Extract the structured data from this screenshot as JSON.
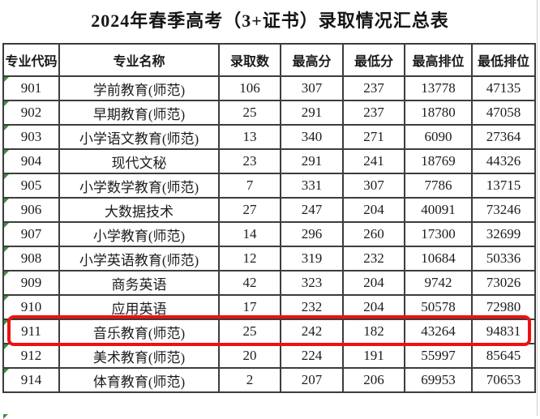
{
  "title": "2024年春季高考（3+证书）录取情况汇总表",
  "table": {
    "columns": [
      "专业代码",
      "专业名称",
      "录取数",
      "最高分",
      "最低分",
      "最高排位",
      "最低排位"
    ],
    "rows": [
      {
        "highlighted": false,
        "cells": [
          "901",
          "学前教育(师范)",
          "106",
          "307",
          "237",
          "13778",
          "47135"
        ]
      },
      {
        "highlighted": false,
        "cells": [
          "902",
          "早期教育(师范)",
          "25",
          "291",
          "237",
          "18780",
          "47058"
        ]
      },
      {
        "highlighted": false,
        "cells": [
          "903",
          "小学语文教育(师范)",
          "13",
          "340",
          "271",
          "6090",
          "27364"
        ]
      },
      {
        "highlighted": false,
        "cells": [
          "904",
          "现代文秘",
          "23",
          "291",
          "241",
          "18769",
          "44326"
        ]
      },
      {
        "highlighted": false,
        "cells": [
          "905",
          "小学数学教育(师范)",
          "7",
          "331",
          "307",
          "7786",
          "13715"
        ]
      },
      {
        "highlighted": false,
        "cells": [
          "906",
          "大数据技术",
          "27",
          "247",
          "204",
          "40091",
          "73246"
        ]
      },
      {
        "highlighted": false,
        "cells": [
          "907",
          "小学教育(师范)",
          "14",
          "296",
          "260",
          "17300",
          "32699"
        ]
      },
      {
        "highlighted": false,
        "cells": [
          "908",
          "小学英语教育(师范)",
          "12",
          "319",
          "232",
          "10684",
          "50336"
        ]
      },
      {
        "highlighted": false,
        "cells": [
          "909",
          "商务英语",
          "42",
          "323",
          "204",
          "9742",
          "73026"
        ]
      },
      {
        "highlighted": false,
        "cells": [
          "910",
          "应用英语",
          "17",
          "232",
          "204",
          "50578",
          "72980"
        ]
      },
      {
        "highlighted": true,
        "cells": [
          "911",
          "音乐教育(师范)",
          "25",
          "242",
          "182",
          "43264",
          "94831"
        ]
      },
      {
        "highlighted": false,
        "cells": [
          "912",
          "美术教育(师范)",
          "20",
          "224",
          "191",
          "55997",
          "85645"
        ]
      },
      {
        "highlighted": false,
        "cells": [
          "914",
          "体育教育(师范)",
          "2",
          "207",
          "206",
          "69953",
          "70653"
        ]
      }
    ],
    "highlight_color": "#ee1111",
    "flag_color": "#3f9142"
  }
}
